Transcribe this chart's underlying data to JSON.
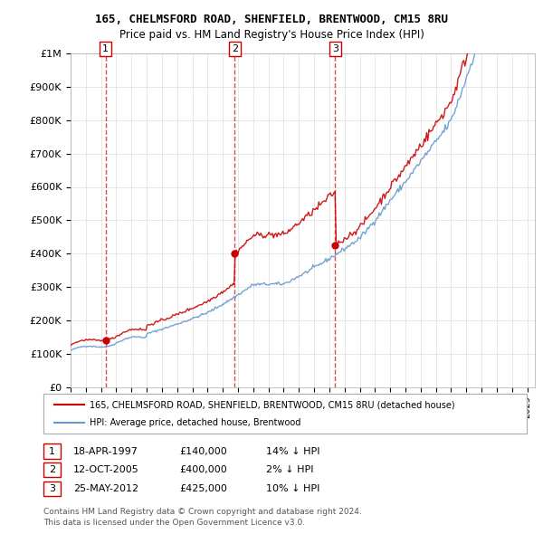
{
  "title": "165, CHELMSFORD ROAD, SHENFIELD, BRENTWOOD, CM15 8RU",
  "subtitle": "Price paid vs. HM Land Registry's House Price Index (HPI)",
  "ylabel_ticks": [
    "£0",
    "£100K",
    "£200K",
    "£300K",
    "£400K",
    "£500K",
    "£600K",
    "£700K",
    "£800K",
    "£900K",
    "£1M"
  ],
  "ytick_vals": [
    0,
    100000,
    200000,
    300000,
    400000,
    500000,
    600000,
    700000,
    800000,
    900000,
    1000000
  ],
  "ylim": [
    0,
    1000000
  ],
  "xlim_start": 1995.0,
  "xlim_end": 2025.5,
  "sale_dates": [
    1997.3,
    2005.78,
    2012.39
  ],
  "sale_prices": [
    140000,
    400000,
    425000
  ],
  "sale_labels": [
    "1",
    "2",
    "3"
  ],
  "legend_line1": "165, CHELMSFORD ROAD, SHENFIELD, BRENTWOOD, CM15 8RU (detached house)",
  "legend_line2": "HPI: Average price, detached house, Brentwood",
  "table_data": [
    [
      "1",
      "18-APR-1997",
      "£140,000",
      "14% ↓ HPI"
    ],
    [
      "2",
      "12-OCT-2005",
      "£400,000",
      "2% ↓ HPI"
    ],
    [
      "3",
      "25-MAY-2012",
      "£425,000",
      "10% ↓ HPI"
    ]
  ],
  "footnote1": "Contains HM Land Registry data © Crown copyright and database right 2024.",
  "footnote2": "This data is licensed under the Open Government Licence v3.0.",
  "red_color": "#cc0000",
  "blue_color": "#6699cc",
  "background_color": "#ffffff",
  "grid_color": "#dddddd"
}
